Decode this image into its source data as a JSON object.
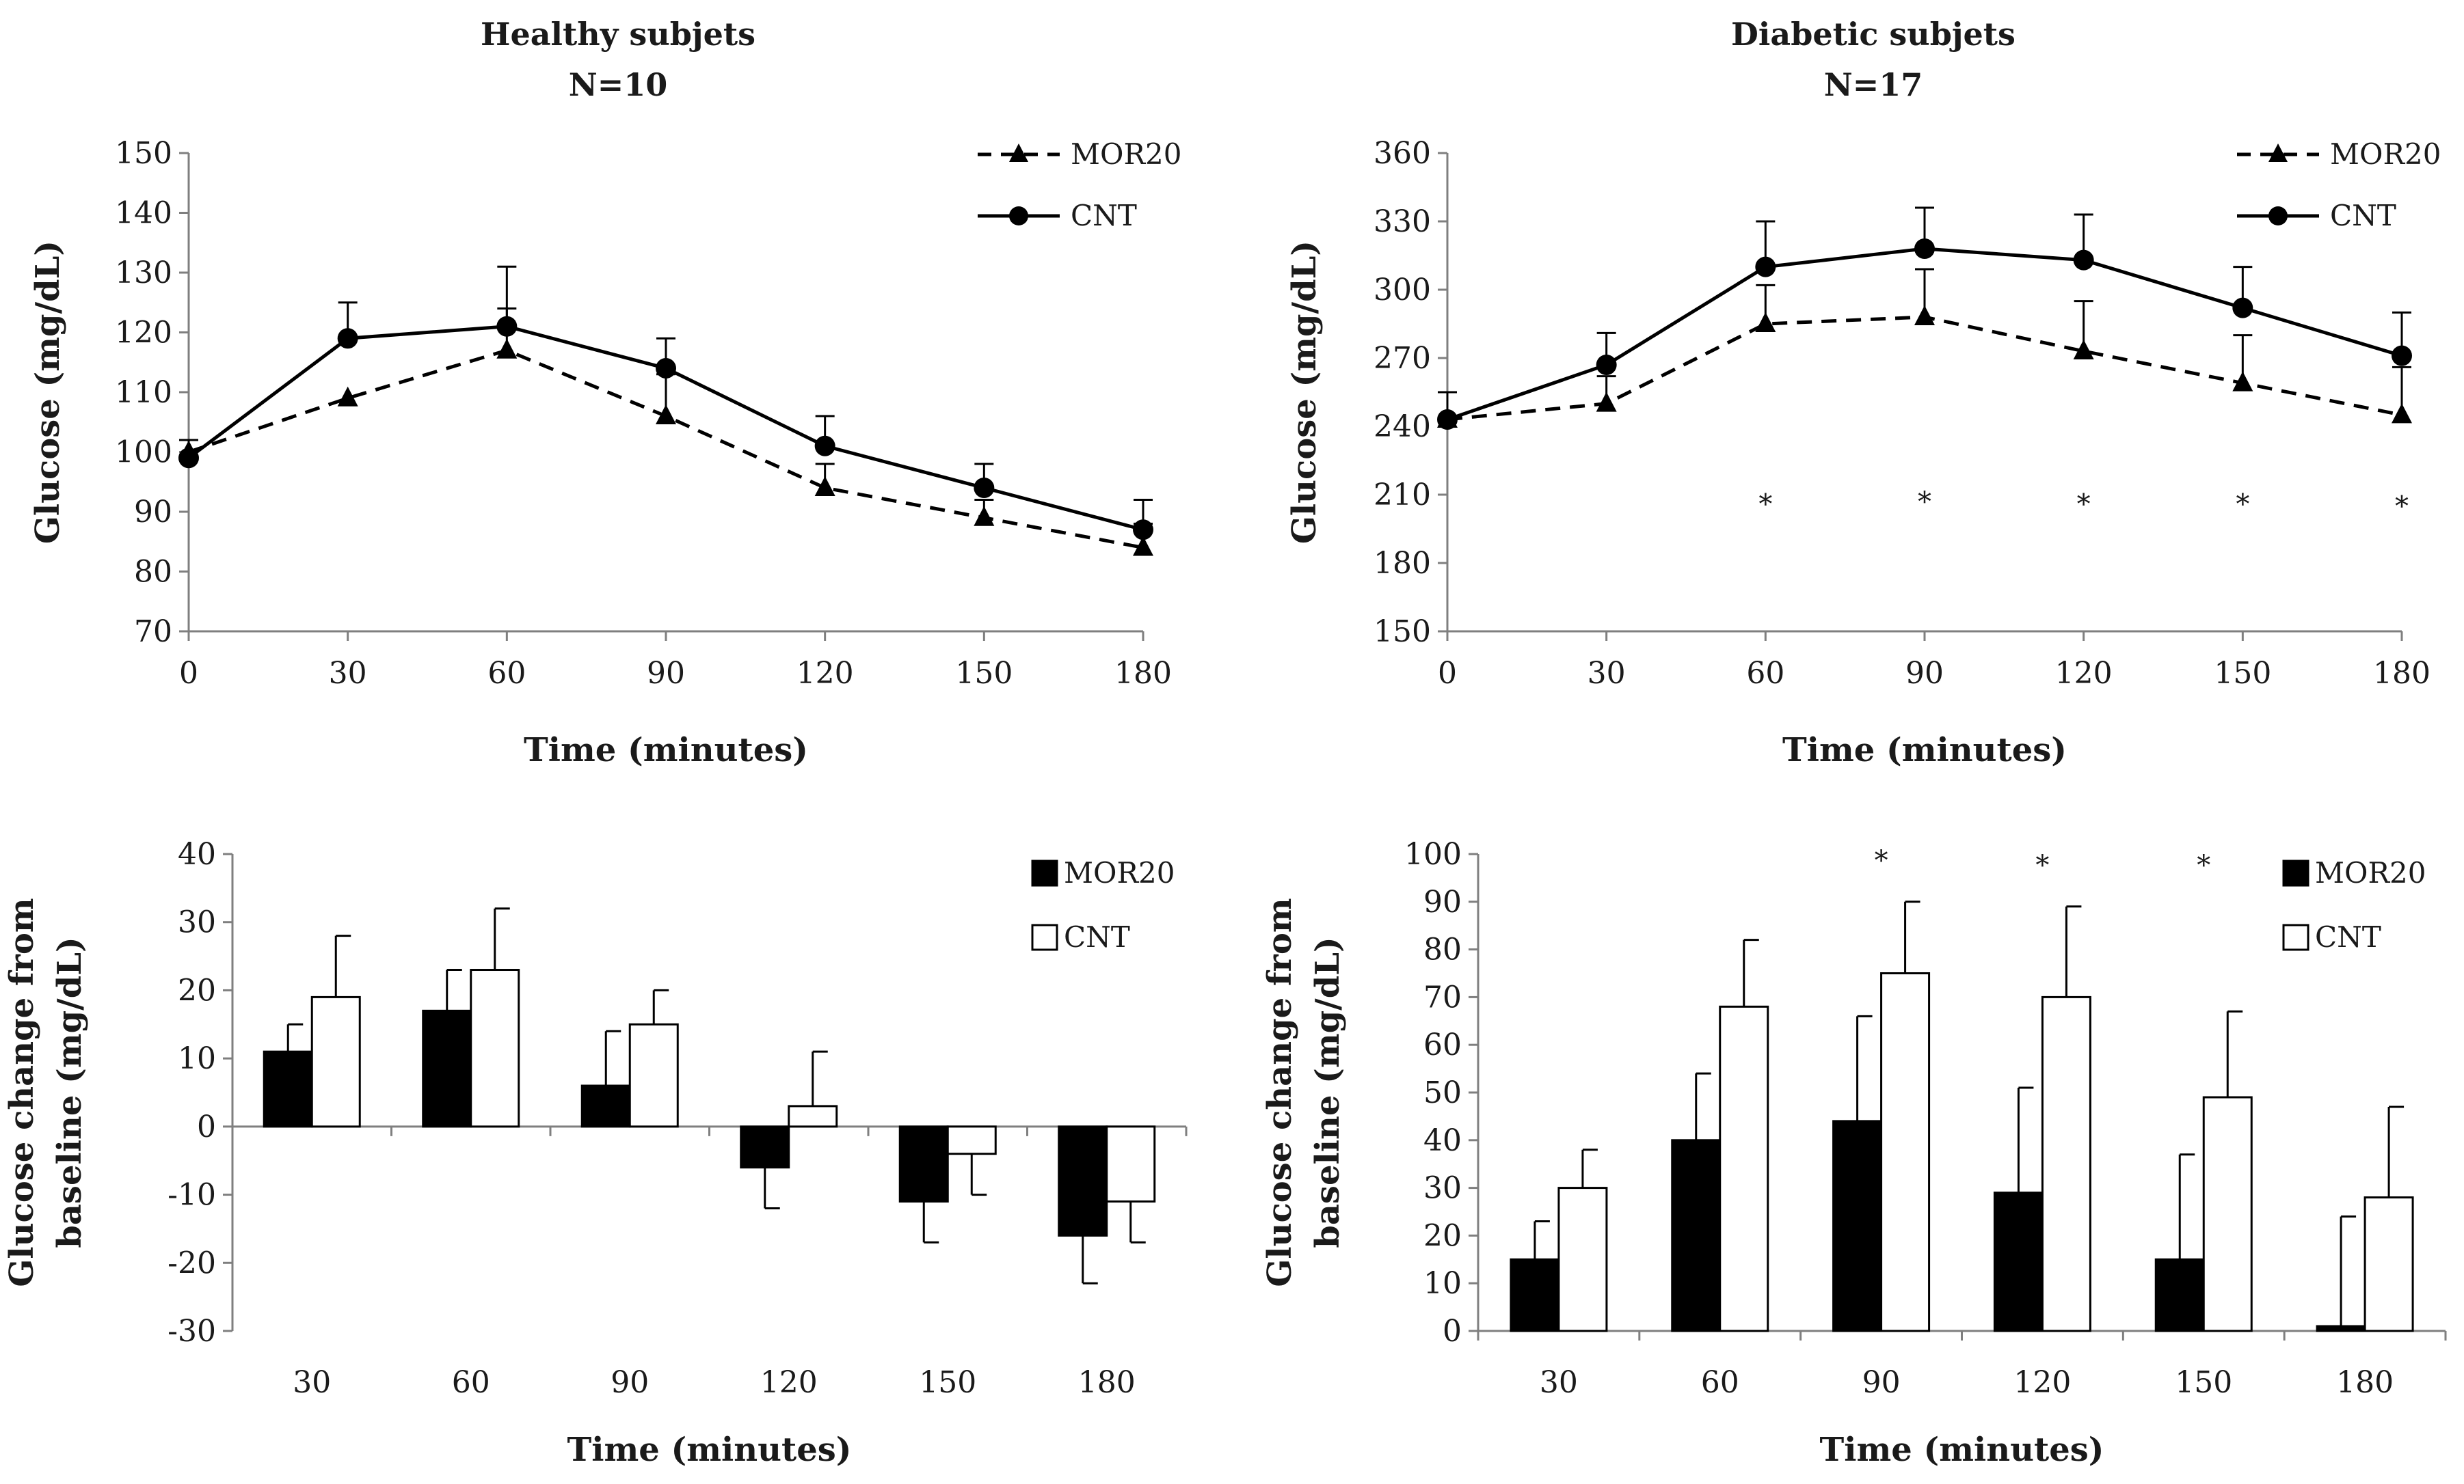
{
  "chart_data": [
    {
      "id": "healthy-line",
      "type": "line",
      "title": "Healthy subjets",
      "subtitle": "N=10",
      "xlabel": "Time (minutes)",
      "ylabel": "Glucose (mg/dL)",
      "x": [
        0,
        30,
        60,
        90,
        120,
        150,
        180
      ],
      "xlim": [
        0,
        180
      ],
      "ylim": [
        70,
        150
      ],
      "yticks": [
        70,
        80,
        90,
        100,
        110,
        120,
        130,
        140,
        150
      ],
      "series": [
        {
          "name": "MOR20",
          "marker": "triangle",
          "dash": true,
          "values": [
            100,
            109,
            117,
            106,
            94,
            89,
            84
          ],
          "errors": [
            2,
            0,
            7,
            7,
            4,
            3,
            4
          ]
        },
        {
          "name": "CNT",
          "marker": "circle",
          "dash": false,
          "values": [
            99,
            119,
            121,
            114,
            101,
            94,
            87
          ],
          "errors": [
            3,
            6,
            10,
            5,
            5,
            4,
            5
          ]
        }
      ],
      "annotations": []
    },
    {
      "id": "diabetic-line",
      "type": "line",
      "title": "Diabetic subjets",
      "subtitle": "N=17",
      "xlabel": "Time (minutes)",
      "ylabel": "Glucose (mg/dL)",
      "x": [
        0,
        30,
        60,
        90,
        120,
        150,
        180
      ],
      "xlim": [
        0,
        180
      ],
      "ylim": [
        150,
        360
      ],
      "yticks": [
        150,
        180,
        210,
        240,
        270,
        300,
        330,
        360
      ],
      "series": [
        {
          "name": "MOR20",
          "marker": "triangle",
          "dash": true,
          "values": [
            243,
            250,
            285,
            288,
            273,
            259,
            245
          ],
          "errors": [
            0,
            12,
            17,
            21,
            22,
            21,
            21
          ]
        },
        {
          "name": "CNT",
          "marker": "circle",
          "dash": false,
          "values": [
            243,
            267,
            310,
            318,
            313,
            292,
            271
          ],
          "errors": [
            12,
            14,
            20,
            18,
            20,
            18,
            19
          ]
        }
      ],
      "annotations": [
        {
          "text": "*",
          "x": 60,
          "y": 206
        },
        {
          "text": "*",
          "x": 90,
          "y": 207
        },
        {
          "text": "*",
          "x": 120,
          "y": 206
        },
        {
          "text": "*",
          "x": 150,
          "y": 206
        },
        {
          "text": "*",
          "x": 180,
          "y": 205
        }
      ]
    },
    {
      "id": "healthy-bar",
      "type": "bar",
      "xlabel": "Time (minutes)",
      "ylabel": "Glucose change from baseline (mg/dL)",
      "ylabel_lines": [
        "Glucose change from",
        "baseline (mg/dL)"
      ],
      "categories": [
        "30",
        "60",
        "90",
        "120",
        "150",
        "180"
      ],
      "ylim": [
        -30,
        40
      ],
      "yticks": [
        -30,
        -20,
        -10,
        0,
        10,
        20,
        30,
        40
      ],
      "series": [
        {
          "name": "MOR20",
          "fill": "#000000",
          "values": [
            11,
            17,
            6,
            -6,
            -11,
            -16
          ],
          "errors": [
            4,
            6,
            8,
            6,
            6,
            7
          ]
        },
        {
          "name": "CNT",
          "fill": "#ffffff",
          "values": [
            19,
            23,
            15,
            3,
            -4,
            -11
          ],
          "errors": [
            9,
            9,
            5,
            8,
            6,
            6
          ]
        }
      ],
      "annotations": []
    },
    {
      "id": "diabetic-bar",
      "type": "bar",
      "xlabel": "Time (minutes)",
      "ylabel": "Glucose change from baseline (mg/dL)",
      "ylabel_lines": [
        "Glucose change from",
        "baseline (mg/dL)"
      ],
      "categories": [
        "30",
        "60",
        "90",
        "120",
        "150",
        "180"
      ],
      "ylim": [
        0,
        100
      ],
      "yticks": [
        0,
        10,
        20,
        30,
        40,
        50,
        60,
        70,
        80,
        90,
        100
      ],
      "series": [
        {
          "name": "MOR20",
          "fill": "#000000",
          "values": [
            15,
            40,
            44,
            29,
            15,
            1
          ],
          "errors": [
            8,
            14,
            22,
            22,
            22,
            23
          ]
        },
        {
          "name": "CNT",
          "fill": "#ffffff",
          "values": [
            30,
            68,
            75,
            70,
            49,
            28
          ],
          "errors": [
            8,
            14,
            15,
            19,
            18,
            19
          ]
        }
      ],
      "annotations": [
        {
          "text": "*",
          "category_index": 2,
          "y": 99
        },
        {
          "text": "*",
          "category_index": 3,
          "y": 98
        },
        {
          "text": "*",
          "category_index": 4,
          "y": 98
        }
      ]
    }
  ]
}
